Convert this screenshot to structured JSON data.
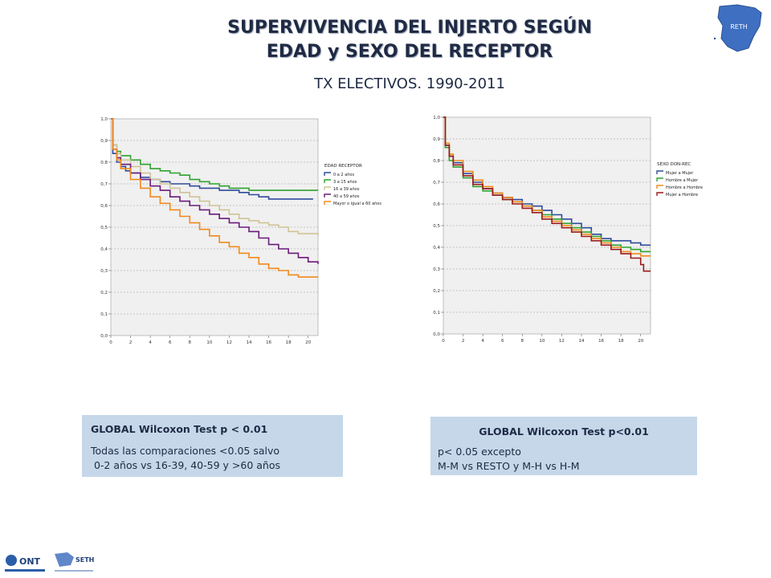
{
  "header": {
    "title_line1": "SUPERVIVENCIA DEL INJERTO SEGÚN",
    "title_line2": "EDAD y SEXO DEL RECEPTOR",
    "subtitle": "TX ELECTIVOS. 1990-2011"
  },
  "logos": {
    "reth": "RETH",
    "ont": "ONT",
    "seth": "SETH"
  },
  "colors": {
    "panel_bg": "#c6d7ea",
    "title": "#1f2a44",
    "plot_bg": "#f0f0f0"
  },
  "chart_data": [
    {
      "type": "line",
      "step": true,
      "title": "",
      "xlabel": "",
      "ylabel": "",
      "xlim": [
        0,
        21
      ],
      "ylim": [
        0,
        1
      ],
      "x_ticks": [
        "0",
        "2",
        "4",
        "6",
        "8",
        "10",
        "12",
        "14",
        "16",
        "18",
        "20"
      ],
      "y_ticks": [
        "0,0",
        "0,1",
        "0,2",
        "0,3",
        "0,4",
        "0,5",
        "0,6",
        "0,7",
        "0,8",
        "0,9",
        "1,0"
      ],
      "grid": true,
      "legend_title": "EDAD RECEPTOR",
      "legend_position": "right",
      "series": [
        {
          "name": "0 a 2 años",
          "color": "#2e4b9b",
          "points": [
            [
              0,
              1.0
            ],
            [
              0.2,
              0.84
            ],
            [
              0.6,
              0.8
            ],
            [
              1,
              0.78
            ],
            [
              1.5,
              0.76
            ],
            [
              2,
              0.75
            ],
            [
              3,
              0.73
            ],
            [
              4,
              0.72
            ],
            [
              5,
              0.71
            ],
            [
              6,
              0.7
            ],
            [
              7,
              0.7
            ],
            [
              8,
              0.69
            ],
            [
              9,
              0.68
            ],
            [
              10,
              0.68
            ],
            [
              11,
              0.67
            ],
            [
              12,
              0.67
            ],
            [
              13,
              0.66
            ],
            [
              14,
              0.65
            ],
            [
              15,
              0.64
            ],
            [
              16,
              0.63
            ],
            [
              18,
              0.63
            ],
            [
              20.5,
              0.63
            ]
          ]
        },
        {
          "name": "3 a 15 años",
          "color": "#2ea32e",
          "points": [
            [
              0,
              1.0
            ],
            [
              0.2,
              0.88
            ],
            [
              0.6,
              0.85
            ],
            [
              1,
              0.83
            ],
            [
              2,
              0.81
            ],
            [
              3,
              0.79
            ],
            [
              4,
              0.77
            ],
            [
              5,
              0.76
            ],
            [
              6,
              0.75
            ],
            [
              7,
              0.74
            ],
            [
              8,
              0.72
            ],
            [
              9,
              0.71
            ],
            [
              10,
              0.7
            ],
            [
              11,
              0.69
            ],
            [
              12,
              0.68
            ],
            [
              13,
              0.68
            ],
            [
              14,
              0.67
            ],
            [
              16,
              0.67
            ],
            [
              18,
              0.67
            ],
            [
              21,
              0.67
            ]
          ]
        },
        {
          "name": "16 a 39 años",
          "color": "#cfc396",
          "points": [
            [
              0,
              1.0
            ],
            [
              0.2,
              0.88
            ],
            [
              0.6,
              0.84
            ],
            [
              1,
              0.81
            ],
            [
              2,
              0.78
            ],
            [
              3,
              0.75
            ],
            [
              4,
              0.72
            ],
            [
              5,
              0.7
            ],
            [
              6,
              0.68
            ],
            [
              7,
              0.66
            ],
            [
              8,
              0.64
            ],
            [
              9,
              0.62
            ],
            [
              10,
              0.6
            ],
            [
              11,
              0.58
            ],
            [
              12,
              0.56
            ],
            [
              13,
              0.54
            ],
            [
              14,
              0.53
            ],
            [
              15,
              0.52
            ],
            [
              16,
              0.51
            ],
            [
              17,
              0.5
            ],
            [
              18,
              0.48
            ],
            [
              19,
              0.47
            ],
            [
              20,
              0.47
            ],
            [
              21,
              0.46
            ]
          ]
        },
        {
          "name": "40 a 59 años",
          "color": "#6b1a7a",
          "points": [
            [
              0,
              1.0
            ],
            [
              0.2,
              0.86
            ],
            [
              0.6,
              0.82
            ],
            [
              1,
              0.79
            ],
            [
              2,
              0.75
            ],
            [
              3,
              0.72
            ],
            [
              4,
              0.69
            ],
            [
              5,
              0.67
            ],
            [
              6,
              0.64
            ],
            [
              7,
              0.62
            ],
            [
              8,
              0.6
            ],
            [
              9,
              0.58
            ],
            [
              10,
              0.56
            ],
            [
              11,
              0.54
            ],
            [
              12,
              0.52
            ],
            [
              13,
              0.5
            ],
            [
              14,
              0.48
            ],
            [
              15,
              0.45
            ],
            [
              16,
              0.42
            ],
            [
              17,
              0.4
            ],
            [
              18,
              0.38
            ],
            [
              19,
              0.36
            ],
            [
              20,
              0.34
            ],
            [
              21,
              0.33
            ]
          ]
        },
        {
          "name": "Mayor o igual a 60 años",
          "color": "#f08a1c",
          "points": [
            [
              0,
              1.0
            ],
            [
              0.2,
              0.86
            ],
            [
              0.6,
              0.81
            ],
            [
              1,
              0.77
            ],
            [
              2,
              0.72
            ],
            [
              3,
              0.68
            ],
            [
              4,
              0.64
            ],
            [
              5,
              0.61
            ],
            [
              6,
              0.58
            ],
            [
              7,
              0.55
            ],
            [
              8,
              0.52
            ],
            [
              9,
              0.49
            ],
            [
              10,
              0.46
            ],
            [
              11,
              0.43
            ],
            [
              12,
              0.41
            ],
            [
              13,
              0.38
            ],
            [
              14,
              0.36
            ],
            [
              15,
              0.33
            ],
            [
              16,
              0.31
            ],
            [
              17,
              0.3
            ],
            [
              18,
              0.28
            ],
            [
              19,
              0.27
            ],
            [
              21,
              0.27
            ]
          ]
        }
      ]
    },
    {
      "type": "line",
      "step": true,
      "title": "",
      "xlabel": "",
      "ylabel": "",
      "xlim": [
        0,
        21
      ],
      "ylim": [
        0,
        1
      ],
      "x_ticks": [
        "0",
        "2",
        "4",
        "6",
        "8",
        "10",
        "12",
        "14",
        "16",
        "18",
        "20"
      ],
      "y_ticks": [
        "0,0",
        "0,1",
        "0,2",
        "0,3",
        "0,4",
        "0,5",
        "0,6",
        "0,7",
        "0,8",
        "0,9",
        "1,0"
      ],
      "grid": true,
      "legend_title": "SEXO DON-REC",
      "legend_position": "right",
      "series": [
        {
          "name": "Mujer a Mujer",
          "color": "#2e4b9b",
          "points": [
            [
              0,
              1.0
            ],
            [
              0.2,
              0.87
            ],
            [
              0.6,
              0.82
            ],
            [
              1,
              0.79
            ],
            [
              2,
              0.74
            ],
            [
              3,
              0.7
            ],
            [
              4,
              0.67
            ],
            [
              5,
              0.65
            ],
            [
              6,
              0.63
            ],
            [
              7,
              0.62
            ],
            [
              8,
              0.6
            ],
            [
              9,
              0.59
            ],
            [
              10,
              0.57
            ],
            [
              11,
              0.55
            ],
            [
              12,
              0.53
            ],
            [
              13,
              0.51
            ],
            [
              14,
              0.49
            ],
            [
              15,
              0.46
            ],
            [
              16,
              0.44
            ],
            [
              17,
              0.43
            ],
            [
              18,
              0.43
            ],
            [
              19,
              0.42
            ],
            [
              20,
              0.41
            ],
            [
              21,
              0.41
            ]
          ]
        },
        {
          "name": "Hombre a Mujer",
          "color": "#2ea32e",
          "points": [
            [
              0,
              1.0
            ],
            [
              0.2,
              0.86
            ],
            [
              0.6,
              0.8
            ],
            [
              1,
              0.77
            ],
            [
              2,
              0.72
            ],
            [
              3,
              0.68
            ],
            [
              4,
              0.66
            ],
            [
              5,
              0.64
            ],
            [
              6,
              0.62
            ],
            [
              7,
              0.61
            ],
            [
              8,
              0.59
            ],
            [
              9,
              0.57
            ],
            [
              10,
              0.55
            ],
            [
              11,
              0.53
            ],
            [
              12,
              0.51
            ],
            [
              13,
              0.49
            ],
            [
              14,
              0.47
            ],
            [
              15,
              0.45
            ],
            [
              16,
              0.43
            ],
            [
              17,
              0.41
            ],
            [
              18,
              0.4
            ],
            [
              19,
              0.39
            ],
            [
              20,
              0.38
            ],
            [
              21,
              0.38
            ]
          ]
        },
        {
          "name": "Hombre a Hombre",
          "color": "#f08a1c",
          "points": [
            [
              0,
              1.0
            ],
            [
              0.2,
              0.88
            ],
            [
              0.6,
              0.83
            ],
            [
              1,
              0.8
            ],
            [
              2,
              0.75
            ],
            [
              3,
              0.71
            ],
            [
              4,
              0.68
            ],
            [
              5,
              0.65
            ],
            [
              6,
              0.63
            ],
            [
              7,
              0.61
            ],
            [
              8,
              0.59
            ],
            [
              9,
              0.57
            ],
            [
              10,
              0.54
            ],
            [
              11,
              0.52
            ],
            [
              12,
              0.5
            ],
            [
              13,
              0.48
            ],
            [
              14,
              0.46
            ],
            [
              15,
              0.44
            ],
            [
              16,
              0.42
            ],
            [
              17,
              0.4
            ],
            [
              18,
              0.38
            ],
            [
              19,
              0.37
            ],
            [
              20,
              0.36
            ],
            [
              21,
              0.36
            ]
          ]
        },
        {
          "name": "Mujer a Hombre",
          "color": "#9b1a1a",
          "points": [
            [
              0,
              1.0
            ],
            [
              0.2,
              0.87
            ],
            [
              0.6,
              0.82
            ],
            [
              1,
              0.78
            ],
            [
              2,
              0.73
            ],
            [
              3,
              0.69
            ],
            [
              4,
              0.67
            ],
            [
              5,
              0.64
            ],
            [
              6,
              0.62
            ],
            [
              7,
              0.6
            ],
            [
              8,
              0.58
            ],
            [
              9,
              0.56
            ],
            [
              10,
              0.53
            ],
            [
              11,
              0.51
            ],
            [
              12,
              0.49
            ],
            [
              13,
              0.47
            ],
            [
              14,
              0.45
            ],
            [
              15,
              0.43
            ],
            [
              16,
              0.41
            ],
            [
              17,
              0.39
            ],
            [
              18,
              0.37
            ],
            [
              19,
              0.35
            ],
            [
              20,
              0.32
            ],
            [
              20.3,
              0.29
            ],
            [
              21,
              0.29
            ]
          ]
        }
      ]
    }
  ],
  "panels": {
    "left": {
      "heading": "GLOBAL Wilcoxon Test p < 0.01",
      "line1": "Todas las comparaciones <0.05 salvo",
      "line2": " 0-2 años vs 16-39, 40-59 y >60 años"
    },
    "right": {
      "heading": "GLOBAL Wilcoxon Test p<0.01",
      "line1": "p< 0.05 excepto",
      "line2": "M-M vs RESTO y M-H vs H-M"
    }
  }
}
